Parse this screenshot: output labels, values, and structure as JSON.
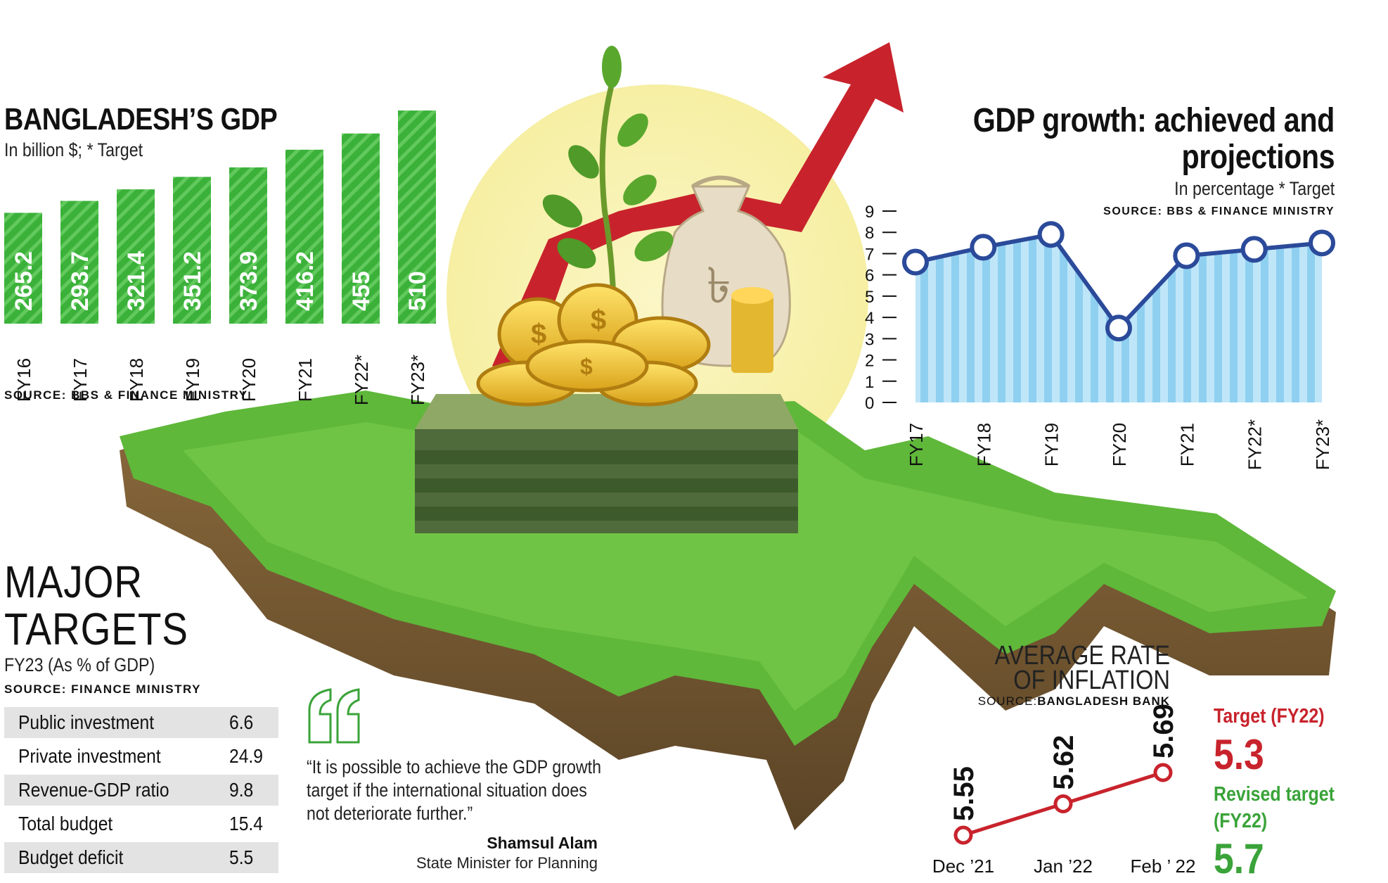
{
  "gdp": {
    "title": "BANGLADESH’S GDP",
    "subtitle": "In billion $; * Target",
    "source": "SOURCE: BBS & FINANCE MINISTRY"
  },
  "growth": {
    "title_line1": "GDP growth: achieved and",
    "title_line2": "projections",
    "subtitle": "In percentage * Target",
    "source": "SOURCE: BBS & FINANCE MINISTRY"
  },
  "targets": {
    "title_line1": "MAJOR",
    "title_line2": "TARGETS",
    "subtitle": "FY23 (As % of GDP)",
    "source": "SOURCE: FINANCE MINISTRY",
    "rows": [
      {
        "label": "Public investment",
        "value": "6.6"
      },
      {
        "label": "Private investment",
        "value": "24.9"
      },
      {
        "label": "Revenue-GDP ratio",
        "value": "9.8"
      },
      {
        "label": "Total budget",
        "value": "15.4"
      },
      {
        "label": "Budget deficit",
        "value": "5.5"
      }
    ]
  },
  "quote": {
    "line1": "“It is possible to achieve the GDP growth",
    "line2": "target if the international situation does",
    "line3": "not deteriorate further.”",
    "author": "Shamsul Alam",
    "role": "State Minister for Planning"
  },
  "inflation": {
    "title_line1": "AVERAGE RATE",
    "title_line2": "OF INFLATION",
    "source_prefix": "SOURCE:",
    "source_name": "BANGLADESH BANK",
    "target_label": "Target (FY22)",
    "target_value": "5.3",
    "revised_label_line1": "Revised target",
    "revised_label_line2": "(FY22)",
    "revised_value": "5.7"
  },
  "colors": {
    "bar_green": "#3bb13a",
    "growth_line": "#2b4a9a",
    "growth_area": "#9fd7f3",
    "inflation_red": "#c8232c",
    "grass": "#5fb83a"
  },
  "chart_data": [
    {
      "type": "bar",
      "title": "BANGLADESH’S GDP",
      "subtitle": "In billion $; * Target",
      "categories": [
        "FY16",
        "FY17",
        "FY18",
        "FY19",
        "FY20",
        "FY21",
        "FY22*",
        "FY23*"
      ],
      "values": [
        265.2,
        293.7,
        321.4,
        351.2,
        373.9,
        416.2,
        455,
        510
      ],
      "value_labels": [
        "265.2",
        "293.7",
        "321.4",
        "351.2",
        "373.9",
        "416.2",
        "455",
        "510"
      ],
      "grid": false
    },
    {
      "type": "line",
      "title": "GDP growth: achieved and projections",
      "subtitle": "In percentage * Target",
      "x": [
        "FY17",
        "FY18",
        "FY19",
        "FY20",
        "FY21",
        "FY22*",
        "FY23*"
      ],
      "values": [
        6.6,
        7.3,
        7.9,
        3.5,
        6.9,
        7.2,
        7.5
      ],
      "yticks": [
        "0",
        "1",
        "2",
        "3",
        "4",
        "5",
        "6",
        "7",
        "8",
        "9"
      ],
      "ylim": [
        0,
        9
      ],
      "grid": false
    },
    {
      "type": "line",
      "title": "AVERAGE RATE OF INFLATION",
      "x": [
        "Dec ’21",
        "Jan ’22",
        "Feb ’ 22"
      ],
      "values": [
        5.55,
        5.62,
        5.69
      ],
      "value_labels": [
        "5.55",
        "5.62",
        "5.69"
      ]
    }
  ]
}
